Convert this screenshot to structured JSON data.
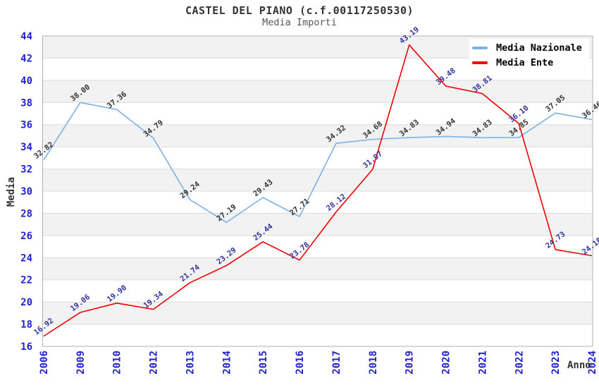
{
  "header": {
    "title": "CASTEL DEL PIANO (c.f.00117250530)",
    "subtitle": "Media Importi"
  },
  "axes": {
    "y_title": "Media",
    "x_title": "Anno"
  },
  "legend": {
    "position": "top-right",
    "items": [
      {
        "label": "Media Nazionale"
      },
      {
        "label": "Media Ente"
      }
    ]
  },
  "colors": {
    "tick_label": "#2222CC",
    "plot_band": "#F2F2F2",
    "gridline": "#DCDCDC",
    "plot_border": "#B0B0B0",
    "title_text": "#333333"
  },
  "chart_data": {
    "type": "line",
    "title": "CASTEL DEL PIANO (c.f.00117250530)",
    "subtitle": "Media Importi",
    "xlabel": "Anno",
    "ylabel": "Media",
    "ylim": [
      16,
      44
    ],
    "y_tick_step": 2,
    "grid": true,
    "banded_background": true,
    "legend_position": "top-right",
    "categories": [
      "2006",
      "2009",
      "2010",
      "2012",
      "2013",
      "2014",
      "2015",
      "2016",
      "2017",
      "2018",
      "2019",
      "2020",
      "2021",
      "2022",
      "2023",
      "2024"
    ],
    "series": [
      {
        "name": "Media Nazionale",
        "color": "#7DB1E4",
        "label_color": "#333333",
        "values": [
          32.82,
          38.0,
          37.36,
          34.79,
          29.24,
          27.19,
          29.43,
          27.71,
          34.32,
          34.68,
          34.83,
          34.94,
          34.83,
          34.85,
          37.05,
          36.46
        ]
      },
      {
        "name": "Media Ente",
        "color": "#EE0000",
        "label_color": "#333399",
        "values": [
          16.92,
          19.06,
          19.9,
          19.34,
          21.74,
          23.29,
          25.44,
          23.78,
          28.12,
          31.97,
          43.19,
          39.48,
          38.81,
          36.1,
          24.73,
          24.18
        ]
      }
    ]
  }
}
